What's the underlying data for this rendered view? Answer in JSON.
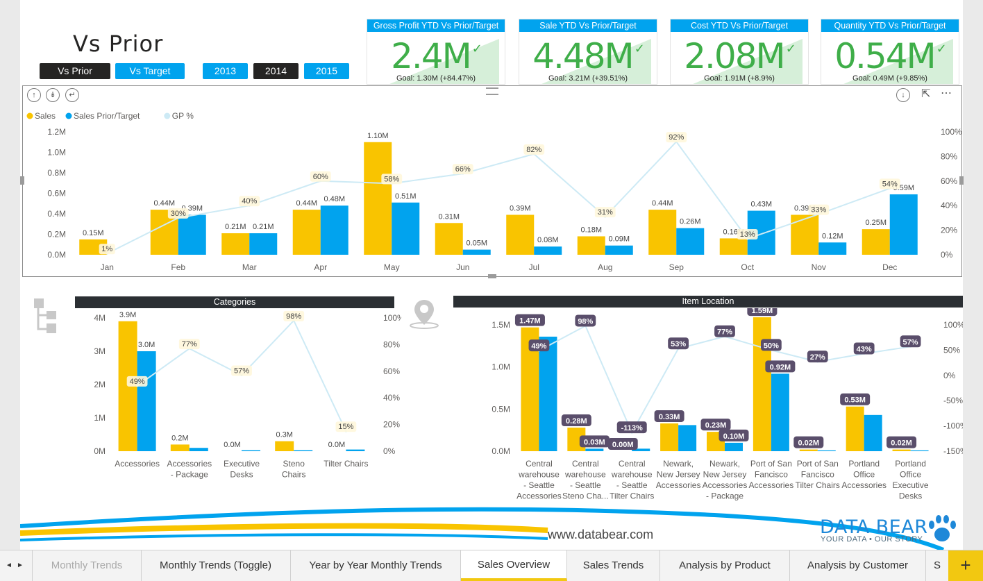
{
  "page_title": "Vs Prior",
  "toggle_buttons": [
    {
      "label": "Vs Prior",
      "active": true
    },
    {
      "label": "Vs Target",
      "active": false
    }
  ],
  "year_buttons": [
    {
      "label": "2013",
      "active": false
    },
    {
      "label": "2014",
      "active": true
    },
    {
      "label": "2015",
      "active": false
    }
  ],
  "kpis": [
    {
      "title": "Gross Profit YTD Vs Prior/Target",
      "value": "2.4M",
      "goal": "Goal: 1.30M (+84.47%)"
    },
    {
      "title": "Sale YTD Vs Prior/Target",
      "value": "4.48M",
      "goal": "Goal: 3.21M (+39.51%)"
    },
    {
      "title": "Cost YTD Vs Prior/Target",
      "value": "2.08M",
      "goal": "Goal: 1.91M (+8.9%)"
    },
    {
      "title": "Quantity YTD Vs Prior/Target",
      "value": "0.54M",
      "goal": "Goal: 0.49M (+9.85%)"
    }
  ],
  "colors": {
    "sales": "#f9c400",
    "prior": "#01a3ee",
    "gp": "#cdeaf5",
    "kpi_green": "#3fae49",
    "header_dark": "#2b2f33",
    "accent_yellow": "#f2c811"
  },
  "chart_data": [
    {
      "type": "bar",
      "legend": [
        "Sales",
        "Sales Prior/Target",
        "GP %"
      ],
      "categories": [
        "Jan",
        "Feb",
        "Mar",
        "Apr",
        "May",
        "Jun",
        "Jul",
        "Aug",
        "Sep",
        "Oct",
        "Nov",
        "Dec"
      ],
      "series": [
        {
          "name": "Sales",
          "values": [
            0.15,
            0.44,
            0.21,
            0.44,
            1.1,
            0.31,
            0.39,
            0.18,
            0.44,
            0.16,
            0.39,
            0.25
          ],
          "labels": [
            "0.15M",
            "0.44M",
            "0.21M",
            "0.44M",
            "1.10M",
            "0.31M",
            "0.39M",
            "0.18M",
            "0.44M",
            "0.16M",
            "0.39M",
            "0.25M"
          ]
        },
        {
          "name": "Sales Prior/Target",
          "values": [
            0,
            0.39,
            0.21,
            0.48,
            0.51,
            0.05,
            0.08,
            0.09,
            0.26,
            0.43,
            0.12,
            0.59
          ],
          "labels": [
            "",
            "0.39M",
            "0.21M",
            "0.48M",
            "0.51M",
            "0.05M",
            "0.08M",
            "0.09M",
            "0.26M",
            "0.43M",
            "0.12M",
            "0.59M"
          ]
        },
        {
          "name": "GP %",
          "type": "line",
          "values": [
            1,
            30,
            40,
            60,
            58,
            66,
            82,
            31,
            92,
            13,
            33,
            54
          ],
          "labels": [
            "1%",
            "30%",
            "40%",
            "60%",
            "58%",
            "66%",
            "82%",
            "31%",
            "92%",
            "13%",
            "33%",
            "54%"
          ]
        }
      ],
      "y_ticks": [
        "0.0M",
        "0.2M",
        "0.4M",
        "0.6M",
        "0.8M",
        "1.0M",
        "1.2M"
      ],
      "y2_ticks": [
        "0%",
        "20%",
        "40%",
        "60%",
        "80%",
        "100%"
      ],
      "ylim": [
        0,
        1.2
      ],
      "y2lim": [
        0,
        100
      ],
      "grid": false,
      "legend_position": "top-left"
    },
    {
      "type": "bar",
      "title": "Categories",
      "categories": [
        "Accessories",
        "Accessories - Package",
        "Executive Desks",
        "Steno Chairs",
        "Tilter Chairs"
      ],
      "category_lines": [
        [
          "Accessories"
        ],
        [
          "Accessories",
          "- Package"
        ],
        [
          "Executive",
          "Desks"
        ],
        [
          "Steno",
          "Chairs"
        ],
        [
          "Tilter Chairs"
        ]
      ],
      "series": [
        {
          "name": "Sales",
          "values": [
            3.9,
            0.2,
            0.0,
            0.3,
            0.0
          ],
          "labels": [
            "3.9M",
            "0.2M",
            "0.0M",
            "0.3M",
            "0.0M"
          ]
        },
        {
          "name": "Sales Prior/Target",
          "values": [
            3.0,
            0.1,
            0.03,
            0.03,
            0.05
          ],
          "labels": [
            "3.0M",
            "",
            "",
            "",
            ""
          ]
        },
        {
          "name": "GP %",
          "type": "line",
          "values": [
            49,
            77,
            57,
            98,
            15
          ],
          "labels": [
            "49%",
            "77%",
            "57%",
            "98%",
            "15%"
          ]
        }
      ],
      "y_ticks": [
        "0M",
        "1M",
        "2M",
        "3M",
        "4M"
      ],
      "y2_ticks": [
        "0%",
        "20%",
        "40%",
        "60%",
        "80%",
        "100%"
      ],
      "ylim": [
        0,
        4
      ],
      "y2lim": [
        0,
        100
      ]
    },
    {
      "type": "bar",
      "title": "Item Location",
      "categories": [
        "Central warehouse - Seattle Accessories",
        "Central warehouse - Seattle Steno Cha...",
        "Central warehouse - Seattle Tilter Chairs",
        "Newark, New Jersey Accessories",
        "Newark, New Jersey Accessories - Package",
        "Port of San Fancisco Accessories",
        "Port of San Fancisco Tilter Chairs",
        "Portland Office Accessories",
        "Portland Office Executive Desks"
      ],
      "category_lines": [
        [
          "Central",
          "warehouse",
          "- Seattle",
          "Accessories"
        ],
        [
          "Central",
          "warehouse",
          "- Seattle",
          "Steno Cha..."
        ],
        [
          "Central",
          "warehouse",
          "- Seattle",
          "Tilter Chairs"
        ],
        [
          "Newark,",
          "New Jersey",
          "Accessories"
        ],
        [
          "Newark,",
          "New Jersey",
          "Accessories",
          "- Package"
        ],
        [
          "Port of San",
          "Fancisco",
          "Accessories"
        ],
        [
          "Port of San",
          "Fancisco",
          "Tilter Chairs"
        ],
        [
          "Portland",
          "Office",
          "Accessories"
        ],
        [
          "Portland",
          "Office",
          "Executive",
          "Desks"
        ]
      ],
      "series": [
        {
          "name": "Sales",
          "values": [
            1.47,
            0.28,
            0.0,
            0.33,
            0.23,
            1.59,
            0.02,
            0.53,
            0.02
          ],
          "labels": [
            "1.47M",
            "0.28M",
            "0.00M",
            "0.33M",
            "0.23M",
            "1.59M",
            "0.02M",
            "0.53M",
            "0.02M"
          ]
        },
        {
          "name": "Sales Prior/Target",
          "values": [
            1.36,
            0.03,
            0.03,
            0.31,
            0.1,
            0.92,
            0.01,
            0.43,
            0.01
          ],
          "labels": [
            "",
            "0.03M",
            "",
            "",
            "0.10M",
            "0.92M",
            "",
            "",
            ""
          ]
        },
        {
          "name": "GP %",
          "type": "line",
          "values": [
            49,
            98,
            -113,
            53,
            77,
            50,
            27,
            43,
            57
          ],
          "labels": [
            "49%",
            "98%",
            "-113%",
            "53%",
            "77%",
            "50%",
            "27%",
            "43%",
            "57%"
          ]
        }
      ],
      "y_ticks": [
        "0.0M",
        "0.5M",
        "1.0M",
        "1.5M"
      ],
      "y2_ticks": [
        "-150%",
        "-100%",
        "-50%",
        "0%",
        "50%",
        "100%"
      ],
      "ylim": [
        0,
        1.5
      ],
      "y2lim": [
        -150,
        100
      ]
    }
  ],
  "footer": {
    "website": "www.databear.com",
    "logo_title": "DATA BEAR",
    "logo_tagline": "YOUR DATA • OUR STORY"
  },
  "tabs": [
    {
      "label": "Monthly Trends",
      "state": "dim"
    },
    {
      "label": "Monthly Trends (Toggle)",
      "state": ""
    },
    {
      "label": "Year by Year Monthly Trends",
      "state": ""
    },
    {
      "label": "Sales Overview",
      "state": "active"
    },
    {
      "label": "Sales Trends",
      "state": ""
    },
    {
      "label": "Analysis by Product",
      "state": ""
    },
    {
      "label": "Analysis by Customer",
      "state": ""
    },
    {
      "label": "S",
      "state": ""
    }
  ],
  "add_page": "+",
  "icons": {
    "kpi_check": "✓",
    "nav_prev": "◄",
    "nav_next": "►",
    "more": "⋯"
  }
}
